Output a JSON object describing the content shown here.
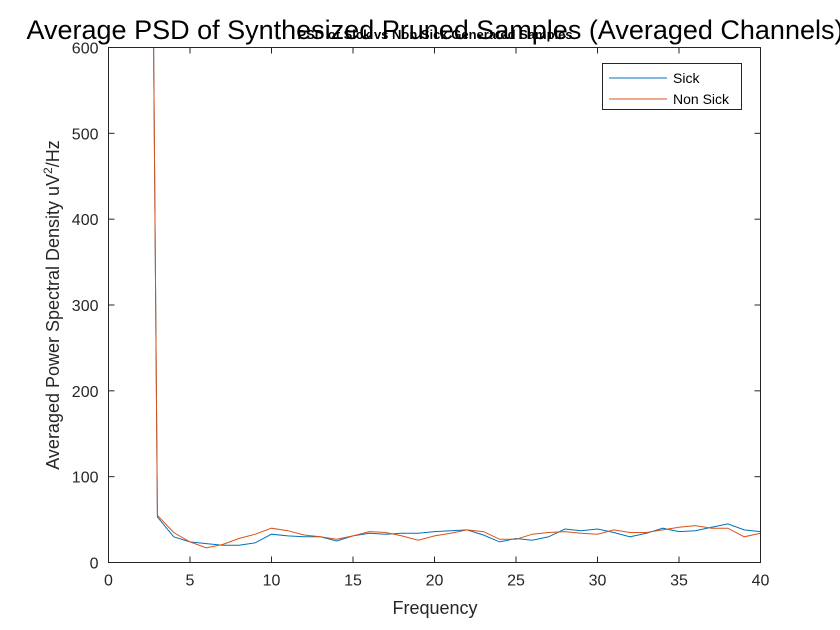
{
  "chart_data": {
    "type": "line",
    "title": "Average PSD of Synthesized Pruned Samples (Averaged Channels)",
    "subtitle": "PSD of Sick vs Non Sick Generated Samples",
    "xlabel": "Frequency",
    "ylabel_main": "Averaged Power Spectral Density uV",
    "ylabel_sup": "2",
    "ylabel_tail": "/Hz",
    "xlim": [
      0,
      40
    ],
    "ylim": [
      0,
      600
    ],
    "xticks": [
      0,
      5,
      10,
      15,
      20,
      25,
      30,
      35,
      40
    ],
    "yticks": [
      0,
      100,
      200,
      300,
      400,
      500,
      600
    ],
    "grid": false,
    "legend_position": "top-right",
    "x": [
      2.7,
      3,
      4,
      5,
      6,
      7,
      8,
      9,
      10,
      11,
      12,
      13,
      14,
      15,
      16,
      17,
      18,
      19,
      20,
      21,
      22,
      23,
      24,
      25,
      26,
      27,
      28,
      29,
      30,
      31,
      32,
      33,
      34,
      35,
      36,
      37,
      38,
      39,
      40
    ],
    "series": [
      {
        "name": "Sick",
        "color": "#0072BD",
        "values": [
          760,
          53,
          30,
          24,
          22,
          20,
          20,
          23,
          33,
          31,
          30,
          30,
          25,
          31,
          34,
          33,
          34,
          34,
          36,
          37,
          38,
          32,
          24,
          28,
          26,
          30,
          39,
          37,
          39,
          35,
          30,
          34,
          40,
          36,
          37,
          41,
          45,
          38,
          36
        ]
      },
      {
        "name": "Non Sick",
        "color": "#D95319",
        "values": [
          760,
          55,
          35,
          24,
          17,
          21,
          28,
          33,
          40,
          37,
          32,
          30,
          27,
          31,
          36,
          35,
          31,
          26,
          31,
          34,
          38,
          36,
          27,
          27,
          33,
          35,
          36,
          34,
          33,
          38,
          35,
          35,
          38,
          41,
          43,
          40,
          40,
          30,
          34
        ]
      }
    ]
  }
}
